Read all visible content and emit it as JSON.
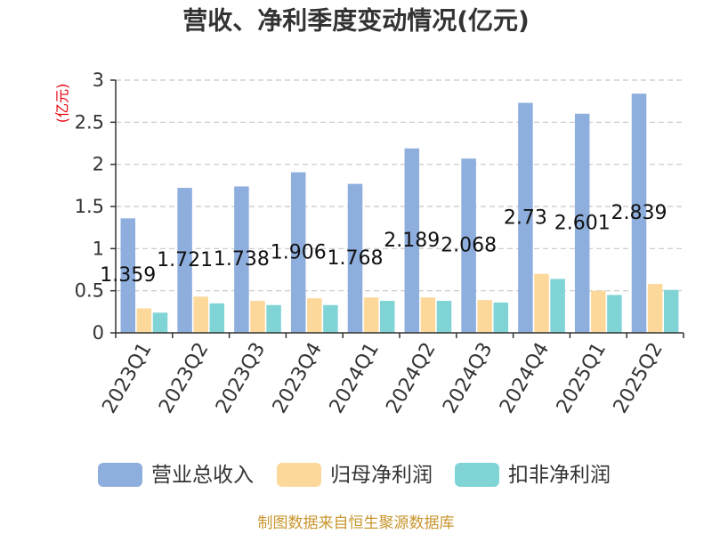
{
  "chart_data": {
    "type": "bar",
    "title": "营收、净利季度变动情况(亿元)",
    "ylabel": "(亿元)",
    "categories": [
      "2023Q1",
      "2023Q2",
      "2023Q3",
      "2023Q4",
      "2024Q1",
      "2024Q2",
      "2024Q3",
      "2024Q4",
      "2025Q1",
      "2025Q2"
    ],
    "series": [
      {
        "name": "营业总收入",
        "color": "#8eaedd",
        "show_labels": true,
        "values": [
          1.359,
          1.721,
          1.738,
          1.906,
          1.768,
          2.189,
          2.068,
          2.73,
          2.601,
          2.839
        ]
      },
      {
        "name": "归母净利润",
        "color": "#fdd89b",
        "show_labels": false,
        "values": [
          0.29,
          0.43,
          0.38,
          0.41,
          0.42,
          0.42,
          0.39,
          0.7,
          0.5,
          0.58
        ]
      },
      {
        "name": "扣非净利润",
        "color": "#80d4d6",
        "show_labels": false,
        "values": [
          0.24,
          0.35,
          0.33,
          0.33,
          0.38,
          0.38,
          0.36,
          0.64,
          0.45,
          0.51
        ]
      }
    ],
    "ylim": [
      0,
      3
    ],
    "yticks": [
      0,
      0.5,
      1,
      1.5,
      2,
      2.5,
      3
    ],
    "grid": true,
    "legend_position": "bottom"
  },
  "footer": "制图数据来自恒生聚源数据库",
  "colors": {
    "text": "#333333",
    "ylabel": "#e8000b",
    "grid": "#c8c8c8",
    "footer": "#c8962e"
  }
}
